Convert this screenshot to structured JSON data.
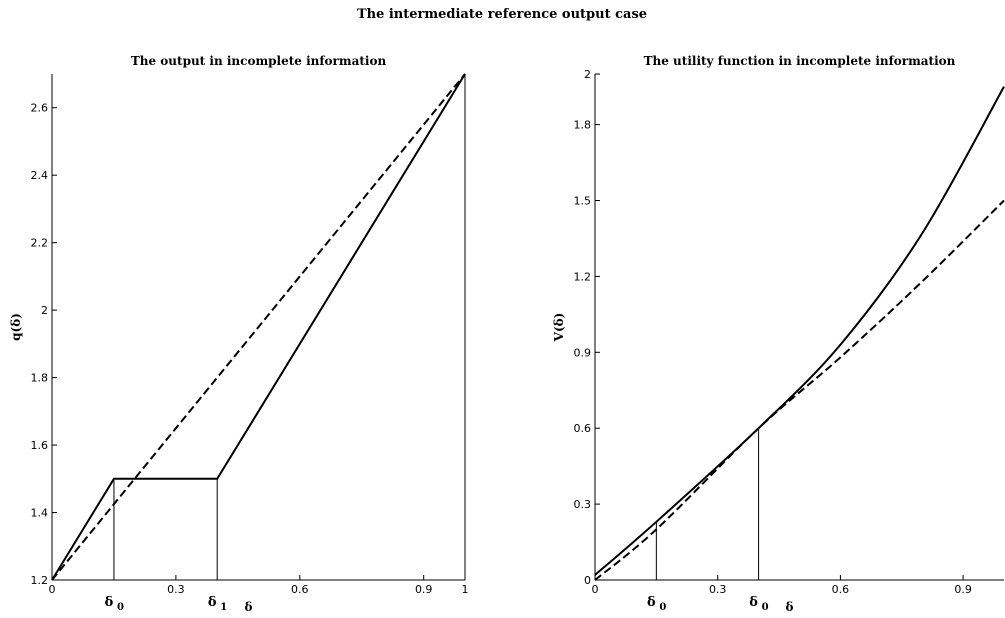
{
  "suptitle": "The intermediate reference output case",
  "chart_data": [
    {
      "type": "line",
      "title": "The output in incomplete information",
      "xlabel": "δ",
      "ylabel": "q(δ)",
      "xlim": [
        0,
        1
      ],
      "ylim": [
        1.2,
        2.7
      ],
      "x_ticks": [
        0,
        0.3,
        0.6,
        0.9,
        1
      ],
      "x_tick_labels": [
        "0",
        "0.3",
        "0.6",
        "0.9",
        "1"
      ],
      "y_ticks": [
        1.2,
        1.4,
        1.6,
        1.8,
        2,
        2.2,
        2.4,
        2.6
      ],
      "y_tick_labels": [
        "1.2",
        "1.4",
        "1.6",
        "1.8",
        "2",
        "2.2",
        "2.4",
        "2.6"
      ],
      "grid": false,
      "series": [
        {
          "style": "solid",
          "x": [
            0,
            0.15,
            0.4,
            1
          ],
          "y": [
            1.2,
            1.5,
            1.5,
            2.7
          ]
        },
        {
          "style": "dashed",
          "x": [
            0,
            1
          ],
          "y": [
            1.2,
            2.7
          ]
        }
      ],
      "vertical_lines": [
        {
          "x": 0.15,
          "y_top": 1.5
        },
        {
          "x": 0.4,
          "y_top": 1.5
        },
        {
          "x": 1,
          "y_top": 2.7
        }
      ],
      "annotations": [
        {
          "text": "δ",
          "subscript": "0",
          "x": 0.15
        },
        {
          "text": "δ",
          "subscript": "1",
          "x": 0.4
        }
      ]
    },
    {
      "type": "line",
      "title": "The utility function in incomplete information",
      "xlabel": "δ",
      "ylabel": "V(δ)",
      "xlim": [
        0,
        1
      ],
      "ylim": [
        0,
        2
      ],
      "x_ticks": [
        0,
        0.3,
        0.6,
        0.9
      ],
      "x_tick_labels": [
        "0",
        "0.3",
        "0.6",
        "0.9"
      ],
      "y_ticks": [
        0,
        0.3,
        0.6,
        0.9,
        1.2,
        1.5,
        1.8,
        2
      ],
      "y_tick_labels": [
        "0",
        "0.3",
        "0.6",
        "0.9",
        "1.2",
        "1.5",
        "1.8",
        "2"
      ],
      "grid": false,
      "series": [
        {
          "style": "solid",
          "x": [
            0,
            0.15,
            0.4,
            0.6,
            0.8,
            1
          ],
          "y": [
            0.02,
            0.23,
            0.6,
            0.93,
            1.37,
            1.95
          ]
        },
        {
          "style": "dashed",
          "x": [
            0,
            0.15,
            0.4,
            0.6,
            0.8,
            1
          ],
          "y": [
            0,
            0.2,
            0.6,
            0.88,
            1.18,
            1.5
          ]
        }
      ],
      "vertical_lines": [
        {
          "x": 0.15,
          "y_top": 0.23
        },
        {
          "x": 0.4,
          "y_top": 0.6
        }
      ],
      "annotations": [
        {
          "text": "δ",
          "subscript": "0",
          "x": 0.15
        },
        {
          "text": "δ",
          "subscript": "0",
          "x": 0.4
        }
      ]
    }
  ]
}
